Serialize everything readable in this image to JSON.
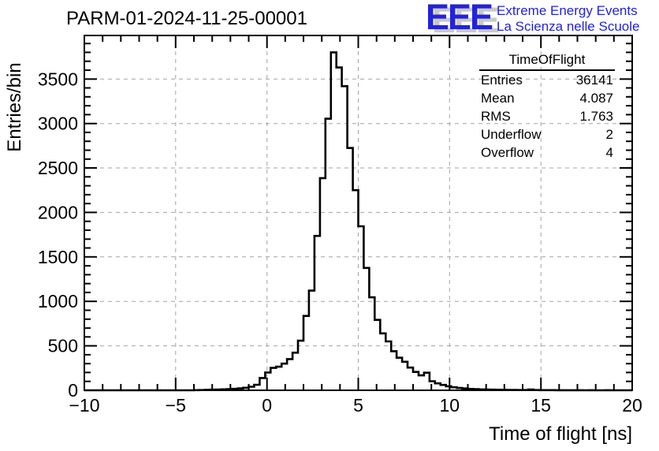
{
  "header": {
    "title": "PARM-01-2024-11-25-00001"
  },
  "logo": {
    "acronym": "EEE",
    "line1": "Extreme Energy Events",
    "line2": "La Scienza nelle Scuole",
    "text_color": "#2222dd",
    "shadow_color": "#c9c9c9"
  },
  "stats": {
    "title": "TimeOfFlight",
    "rows": [
      {
        "label": "Entries",
        "value": "36141"
      },
      {
        "label": "Mean",
        "value": "4.087"
      },
      {
        "label": "RMS",
        "value": "1.763"
      },
      {
        "label": "Underflow",
        "value": "2"
      },
      {
        "label": "Overflow",
        "value": "4"
      }
    ]
  },
  "chart_data": {
    "type": "bar",
    "subtype": "step-histogram",
    "title": "PARM-01-2024-11-25-00001",
    "xlabel": "Time of flight [ns]",
    "ylabel": "Entries/bin",
    "xlim": [
      -10,
      20
    ],
    "ylim": [
      0,
      3990
    ],
    "grid": true,
    "legend_position": "none",
    "line_color": "#000000",
    "grid_color": "#a3a3a3",
    "bin_start": -10,
    "bin_width": 0.3,
    "x_major_ticks": [
      -10,
      -5,
      0,
      5,
      10,
      15,
      20
    ],
    "x_tick_labels": [
      "−10",
      "−5",
      "0",
      "5",
      "10",
      "15",
      "20"
    ],
    "x_minor_step": 1,
    "y_major_ticks": [
      0,
      500,
      1000,
      1500,
      2000,
      2500,
      3000,
      3500
    ],
    "y_tick_labels": [
      "0",
      "500",
      "1000",
      "1500",
      "2000",
      "2500",
      "3000",
      "3500"
    ],
    "y_minor_step": 100,
    "grid_x": [
      -5,
      0,
      5,
      10,
      15
    ],
    "grid_y": [
      500,
      1000,
      1500,
      2000,
      2500,
      3000,
      3500
    ],
    "values": [
      0,
      0,
      0,
      0,
      0,
      0,
      0,
      0,
      0,
      0,
      0,
      0,
      0,
      0,
      0,
      0,
      0,
      0,
      0,
      0,
      2,
      3,
      5,
      7,
      9,
      11,
      13,
      16,
      21,
      28,
      40,
      62,
      138,
      200,
      252,
      265,
      300,
      351,
      423,
      558,
      836,
      1121,
      1736,
      2386,
      3054,
      3800,
      3630,
      3420,
      2725,
      2250,
      1844,
      1376,
      1045,
      792,
      640,
      550,
      440,
      366,
      321,
      255,
      207,
      168,
      198,
      102,
      78,
      60,
      45,
      34,
      26,
      20,
      15,
      12,
      10,
      8,
      7,
      6,
      5,
      4,
      4,
      3,
      3,
      9,
      3,
      2,
      2,
      2,
      1,
      1,
      1,
      1,
      1,
      0,
      1,
      0,
      0,
      1,
      0,
      0,
      0,
      0
    ]
  }
}
